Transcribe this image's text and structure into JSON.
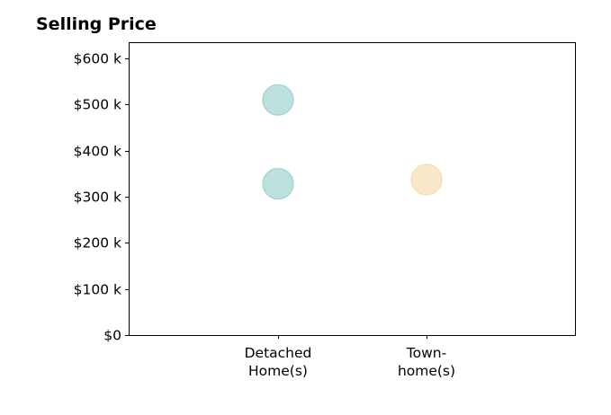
{
  "chart_data": {
    "type": "scatter",
    "title": "Selling Price",
    "xlabel": "",
    "ylabel": "",
    "categories": [
      [
        "Detached",
        "Home(s)"
      ],
      [
        "Town-",
        "home(s)"
      ]
    ],
    "ylim": [
      0,
      635000
    ],
    "yticks": [
      {
        "value": 0,
        "label": "$0"
      },
      {
        "value": 100000,
        "label": "$100 k"
      },
      {
        "value": 200000,
        "label": "$200 k"
      },
      {
        "value": 300000,
        "label": "$300 k"
      },
      {
        "value": 400000,
        "label": "$400 k"
      },
      {
        "value": 500000,
        "label": "$500 k"
      },
      {
        "value": 600000,
        "label": "$600 k"
      }
    ],
    "points": [
      {
        "category_index": 0,
        "value": 510000,
        "color": "#9fd3ce"
      },
      {
        "category_index": 0,
        "value": 328000,
        "color": "#9fd3ce"
      },
      {
        "category_index": 1,
        "value": 337000,
        "color": "#f5ddb0"
      }
    ],
    "grid": false,
    "legend": "none"
  }
}
